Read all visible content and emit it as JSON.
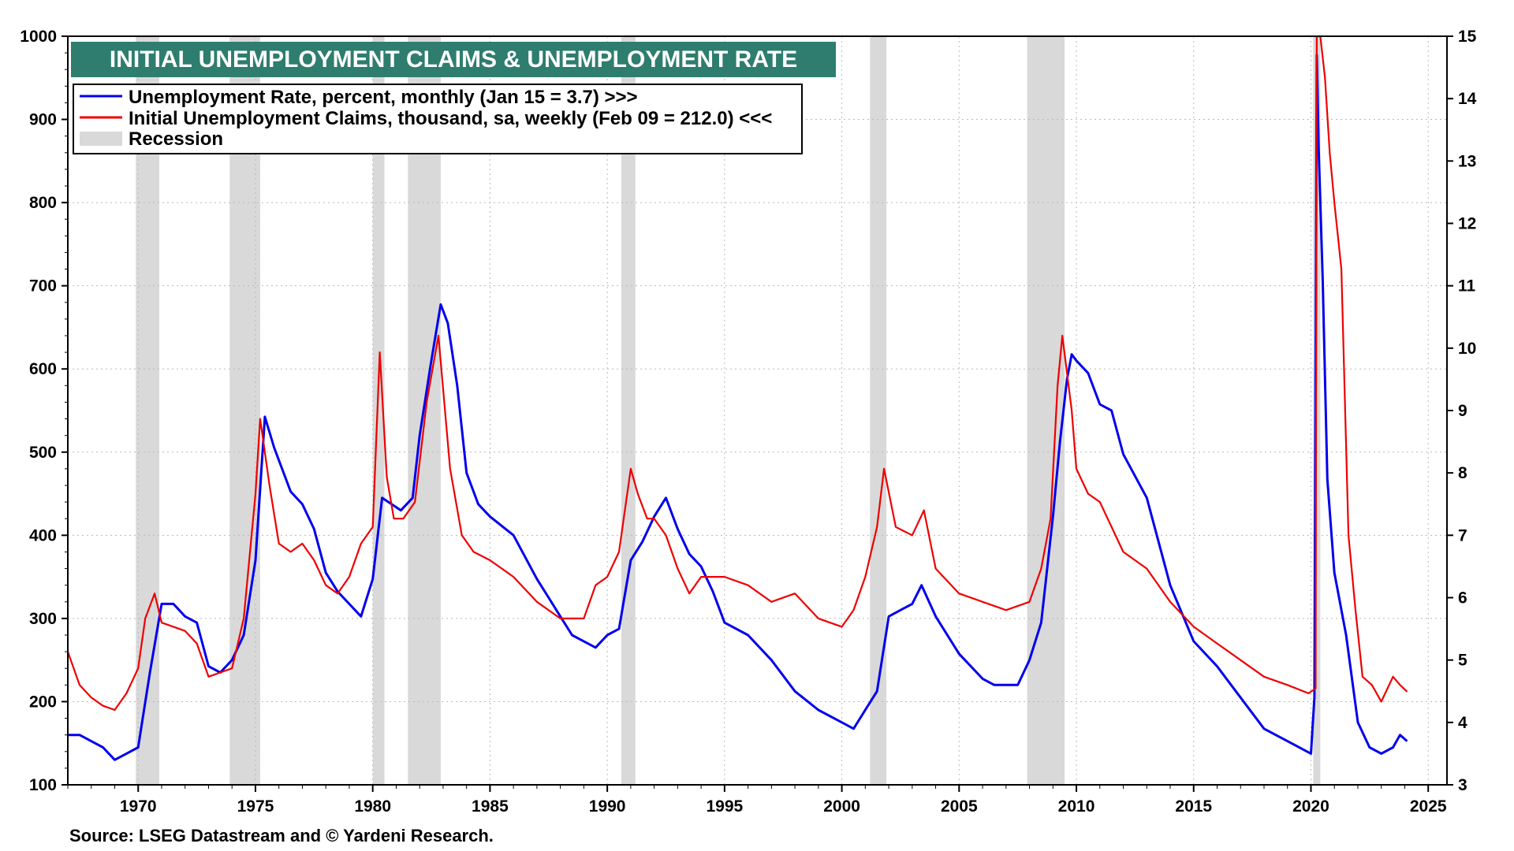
{
  "chart_data": {
    "type": "line",
    "title": "INITIAL UNEMPLOYMENT CLAIMS & UNEMPLOYMENT RATE",
    "source": "Source: LSEG Datastream and © Yardeni Research.",
    "x_range": [
      1967.0,
      2025.8
    ],
    "left_axis": {
      "min": 100,
      "max": 1000,
      "ticks": [
        "100",
        "200",
        "300",
        "400",
        "500",
        "600",
        "700",
        "800",
        "900",
        "1000"
      ]
    },
    "right_axis": {
      "min": 3,
      "max": 15,
      "ticks": [
        "3",
        "4",
        "5",
        "6",
        "7",
        "8",
        "9",
        "10",
        "11",
        "12",
        "13",
        "14",
        "15"
      ]
    },
    "x_ticks": [
      "1970",
      "1975",
      "1980",
      "1985",
      "1990",
      "1995",
      "2000",
      "2005",
      "2010",
      "2015",
      "2020",
      "2025"
    ],
    "legend": [
      {
        "label": "Unemployment Rate, percent, monthly (Jan 15 = 3.7) >>>",
        "color": "#0000ee",
        "kind": "line"
      },
      {
        "label": "Initial Unemployment Claims, thousand, sa, weekly (Feb 09 = 212.0) <<<",
        "color": "#ee0000",
        "kind": "line"
      },
      {
        "label": "Recession",
        "color": "#d9d9d9",
        "kind": "box"
      }
    ],
    "recessions": [
      [
        1969.9,
        1970.9
      ],
      [
        1973.9,
        1975.2
      ],
      [
        1980.0,
        1980.5
      ],
      [
        1981.5,
        1982.9
      ],
      [
        1990.6,
        1991.2
      ],
      [
        2001.2,
        2001.9
      ],
      [
        2007.9,
        2009.5
      ],
      [
        2020.1,
        2020.4
      ]
    ],
    "series": [
      {
        "name": "Unemployment Rate",
        "axis": "right",
        "color": "#0000ee",
        "x": [
          1967.0,
          1967.5,
          1968.0,
          1968.5,
          1969.0,
          1969.5,
          1970.0,
          1970.5,
          1971.0,
          1971.5,
          1972.0,
          1972.5,
          1973.0,
          1973.5,
          1974.0,
          1974.5,
          1975.0,
          1975.4,
          1975.8,
          1976.5,
          1977.0,
          1977.5,
          1978.0,
          1978.5,
          1979.0,
          1979.5,
          1980.0,
          1980.4,
          1980.8,
          1981.2,
          1981.7,
          1982.0,
          1982.5,
          1982.9,
          1983.2,
          1983.6,
          1984.0,
          1984.5,
          1985.0,
          1986.0,
          1987.0,
          1987.5,
          1988.0,
          1988.5,
          1989.0,
          1989.5,
          1990.0,
          1990.5,
          1991.0,
          1991.5,
          1992.0,
          1992.5,
          1993.0,
          1993.5,
          1994.0,
          1994.5,
          1995.0,
          1996.0,
          1997.0,
          1998.0,
          1999.0,
          2000.0,
          2000.5,
          2001.0,
          2001.5,
          2002.0,
          2002.5,
          2003.0,
          2003.4,
          2004.0,
          2005.0,
          2006.0,
          2006.5,
          2007.0,
          2007.5,
          2008.0,
          2008.5,
          2009.0,
          2009.3,
          2009.6,
          2009.8,
          2010.0,
          2010.5,
          2011.0,
          2011.5,
          2012.0,
          2013.0,
          2014.0,
          2015.0,
          2016.0,
          2017.0,
          2018.0,
          2019.0,
          2020.0,
          2020.15,
          2020.25,
          2020.33,
          2020.5,
          2020.7,
          2021.0,
          2021.5,
          2022.0,
          2022.5,
          2023.0,
          2023.5,
          2023.8,
          2024.1
        ],
        "y": [
          3.8,
          3.8,
          3.7,
          3.6,
          3.4,
          3.5,
          3.6,
          4.8,
          5.9,
          5.9,
          5.7,
          5.6,
          4.9,
          4.8,
          5.0,
          5.4,
          6.6,
          8.9,
          8.4,
          7.7,
          7.5,
          7.1,
          6.4,
          6.1,
          5.9,
          5.7,
          6.3,
          7.6,
          7.5,
          7.4,
          7.6,
          8.6,
          9.8,
          10.7,
          10.4,
          9.4,
          8.0,
          7.5,
          7.3,
          7.0,
          6.3,
          6.0,
          5.7,
          5.4,
          5.3,
          5.2,
          5.4,
          5.5,
          6.6,
          6.9,
          7.3,
          7.6,
          7.1,
          6.7,
          6.5,
          6.1,
          5.6,
          5.4,
          5.0,
          4.5,
          4.2,
          4.0,
          3.9,
          4.2,
          4.5,
          5.7,
          5.8,
          5.9,
          6.2,
          5.7,
          5.1,
          4.7,
          4.6,
          4.6,
          4.6,
          5.0,
          5.6,
          7.3,
          8.5,
          9.5,
          9.9,
          9.8,
          9.6,
          9.1,
          9.0,
          8.3,
          7.6,
          6.2,
          5.3,
          4.9,
          4.4,
          3.9,
          3.7,
          3.5,
          4.4,
          14.7,
          13.2,
          11.1,
          7.9,
          6.4,
          5.4,
          4.0,
          3.6,
          3.5,
          3.6,
          3.8,
          3.7
        ]
      },
      {
        "name": "Initial Unemployment Claims",
        "axis": "left",
        "color": "#ee0000",
        "x": [
          1967.0,
          1967.5,
          1968.0,
          1968.5,
          1969.0,
          1969.5,
          1970.0,
          1970.3,
          1970.7,
          1971.0,
          1971.5,
          1972.0,
          1972.5,
          1973.0,
          1973.5,
          1974.0,
          1974.5,
          1975.0,
          1975.2,
          1975.6,
          1976.0,
          1976.5,
          1977.0,
          1977.5,
          1978.0,
          1978.5,
          1979.0,
          1979.5,
          1980.0,
          1980.3,
          1980.6,
          1980.9,
          1981.3,
          1981.8,
          1982.3,
          1982.8,
          1983.3,
          1983.8,
          1984.3,
          1985.0,
          1986.0,
          1987.0,
          1988.0,
          1989.0,
          1989.5,
          1990.0,
          1990.5,
          1991.0,
          1991.3,
          1991.7,
          1992.0,
          1992.5,
          1993.0,
          1993.5,
          1994.0,
          1995.0,
          1996.0,
          1997.0,
          1998.0,
          1999.0,
          2000.0,
          2000.5,
          2001.0,
          2001.5,
          2001.8,
          2002.3,
          2003.0,
          2003.5,
          2004.0,
          2005.0,
          2006.0,
          2007.0,
          2008.0,
          2008.5,
          2008.9,
          2009.2,
          2009.4,
          2009.8,
          2010.0,
          2010.5,
          2011.0,
          2012.0,
          2013.0,
          2014.0,
          2015.0,
          2016.0,
          2017.0,
          2018.0,
          2019.0,
          2019.9,
          2020.2,
          2020.25,
          2020.4,
          2020.6,
          2020.8,
          2021.0,
          2021.3,
          2021.6,
          2021.9,
          2022.2,
          2022.6,
          2023.0,
          2023.5,
          2023.8,
          2024.1
        ],
        "y": [
          260,
          220,
          205,
          195,
          190,
          210,
          240,
          300,
          330,
          295,
          290,
          285,
          270,
          230,
          235,
          240,
          300,
          450,
          540,
          460,
          390,
          380,
          390,
          370,
          340,
          330,
          350,
          390,
          410,
          620,
          470,
          420,
          420,
          440,
          560,
          640,
          480,
          400,
          380,
          370,
          350,
          320,
          300,
          300,
          340,
          350,
          380,
          480,
          450,
          420,
          420,
          400,
          360,
          330,
          350,
          350,
          340,
          320,
          330,
          300,
          290,
          310,
          350,
          410,
          480,
          410,
          400,
          430,
          360,
          330,
          320,
          310,
          320,
          360,
          420,
          580,
          640,
          550,
          480,
          450,
          440,
          380,
          360,
          320,
          290,
          270,
          250,
          230,
          220,
          210,
          216,
          1000,
          1000,
          950,
          860,
          800,
          720,
          400,
          310,
          230,
          220,
          200,
          230,
          220,
          212
        ]
      }
    ]
  }
}
